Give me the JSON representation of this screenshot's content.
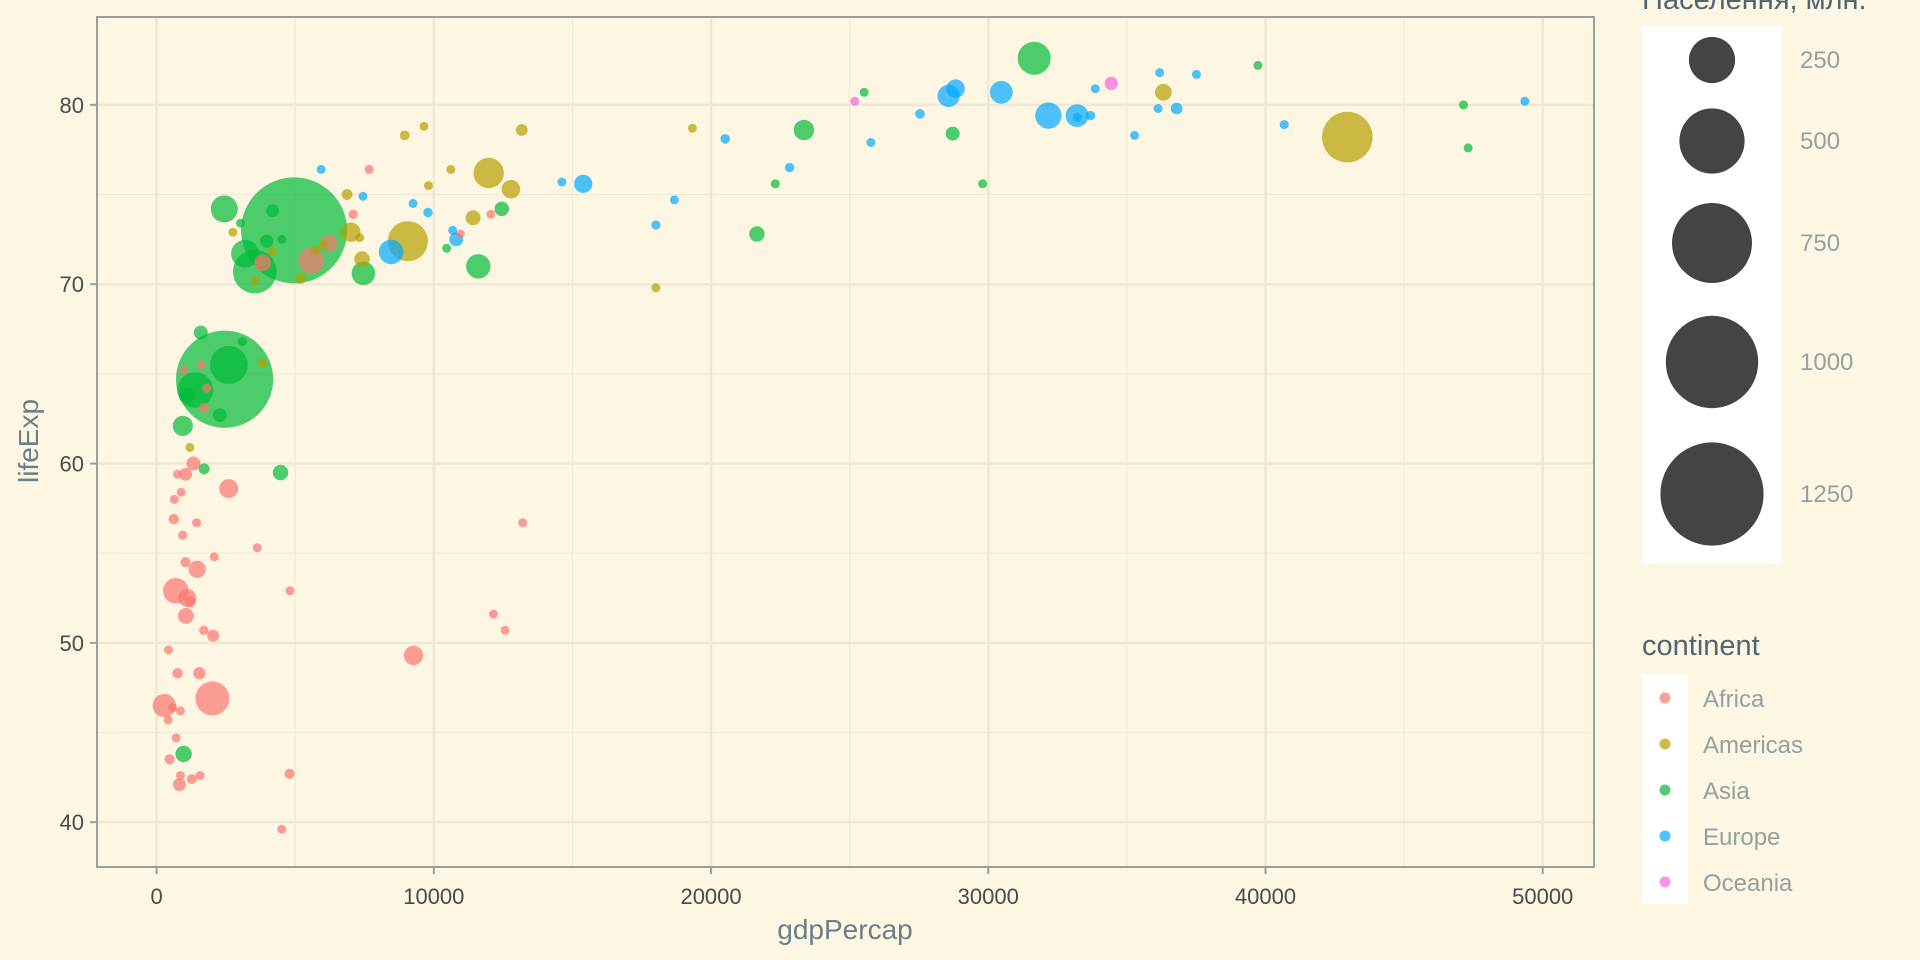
{
  "chart_data": {
    "type": "scatter",
    "xlabel": "gdpPercap",
    "ylabel": "lifeExp",
    "xlim": [
      -2150,
      51850
    ],
    "ylim": [
      37.5,
      84.9
    ],
    "x_ticks": [
      0,
      10000,
      20000,
      30000,
      40000,
      50000
    ],
    "y_ticks": [
      40,
      50,
      60,
      70,
      80
    ],
    "grid": true,
    "colors": {
      "background": "#FDF6E3",
      "panel_border": "#93A1A1",
      "grid_major": "#EEE8D5",
      "size_legend_fill": "#444444"
    },
    "size_legend": {
      "title": "Населення, млн.",
      "placement": "right-top",
      "breaks": [
        {
          "value": 250,
          "label": "250"
        },
        {
          "value": 500,
          "label": "500"
        },
        {
          "value": 750,
          "label": "750"
        },
        {
          "value": 1000,
          "label": "1000"
        },
        {
          "value": 1250,
          "label": "1250"
        }
      ]
    },
    "color_legend": {
      "title": "continent",
      "placement": "right-bottom"
    },
    "series": [
      {
        "name": "Africa",
        "color": "#F8766D",
        "points": [
          [
            6223,
            72.3,
            33.3
          ],
          [
            4797,
            42.7,
            12.4
          ],
          [
            1441,
            56.7,
            8.1
          ],
          [
            12570,
            50.7,
            1.6
          ],
          [
            1217,
            52.3,
            14.3
          ],
          [
            430,
            49.6,
            8.4
          ],
          [
            2042,
            50.4,
            17.7
          ],
          [
            706,
            44.7,
            4.4
          ],
          [
            1704,
            50.7,
            10.2
          ],
          [
            986,
            65.2,
            0.7
          ],
          [
            278,
            46.5,
            64.6
          ],
          [
            3633,
            55.3,
            3.8
          ],
          [
            1545,
            48.3,
            18.0
          ],
          [
            2082,
            54.8,
            0.5
          ],
          [
            5581,
            71.3,
            80.3
          ],
          [
            12154,
            51.6,
            0.6
          ],
          [
            641,
            58.0,
            4.9
          ],
          [
            691,
            52.9,
            76.5
          ],
          [
            13206,
            56.7,
            1.5
          ],
          [
            753,
            59.4,
            1.7
          ],
          [
            1328,
            60.0,
            22.9
          ],
          [
            943,
            56.0,
            9.9
          ],
          [
            580,
            46.4,
            1.5
          ],
          [
            1464,
            54.1,
            35.6
          ],
          [
            1569,
            42.6,
            2.0
          ],
          [
            415,
            45.7,
            3.2
          ],
          [
            12057,
            73.9,
            6.0
          ],
          [
            1045,
            59.4,
            19.2
          ],
          [
            759,
            48.3,
            13.3
          ],
          [
            1042,
            54.5,
            12.0
          ],
          [
            1803,
            64.2,
            3.3
          ],
          [
            10957,
            72.8,
            1.3
          ],
          [
            3820,
            71.2,
            33.8
          ],
          [
            824,
            42.1,
            19.9
          ],
          [
            4811,
            52.9,
            2.1
          ],
          [
            620,
            56.9,
            12.9
          ],
          [
            2014,
            46.9,
            135.0
          ],
          [
            7670,
            76.4,
            0.8
          ],
          [
            863,
            46.2,
            9.0
          ],
          [
            1598,
            65.5,
            0.2
          ],
          [
            1712,
            63.1,
            12.3
          ],
          [
            862,
            42.6,
            6.1
          ],
          [
            9269,
            49.3,
            43.9
          ],
          [
            2602,
            58.6,
            42.3
          ],
          [
            4513,
            39.6,
            1.1
          ],
          [
            1107,
            52.5,
            38.1
          ],
          [
            883,
            58.4,
            5.7
          ],
          [
            7093,
            73.9,
            10.3
          ],
          [
            1056,
            51.5,
            29.2
          ],
          [
            1271,
            42.4,
            11.7
          ],
          [
            470,
            43.5,
            12.3
          ]
        ]
      },
      {
        "name": "Americas",
        "color": "#B79F00",
        "points": [
          [
            12779,
            75.3,
            40.3
          ],
          [
            3822,
            65.6,
            9.1
          ],
          [
            9066,
            72.4,
            190.0
          ],
          [
            36319,
            80.7,
            33.4
          ],
          [
            13172,
            78.6,
            16.3
          ],
          [
            7007,
            72.9,
            44.2
          ],
          [
            9645,
            78.8,
            4.1
          ],
          [
            8948,
            78.3,
            11.4
          ],
          [
            6025,
            72.2,
            9.3
          ],
          [
            6873,
            75.0,
            13.8
          ],
          [
            5728,
            71.9,
            6.9
          ],
          [
            5186,
            70.3,
            12.6
          ],
          [
            1202,
            60.9,
            8.5
          ],
          [
            3548,
            70.2,
            7.5
          ],
          [
            7321,
            72.6,
            2.8
          ],
          [
            11978,
            76.2,
            108.7
          ],
          [
            2749,
            72.9,
            5.7
          ],
          [
            9809,
            75.5,
            3.2
          ],
          [
            4173,
            71.8,
            6.7
          ],
          [
            7409,
            71.4,
            28.7
          ],
          [
            19329,
            78.7,
            3.9
          ],
          [
            18009,
            69.8,
            1.1
          ],
          [
            42952,
            78.2,
            301.1
          ],
          [
            10611,
            76.4,
            3.4
          ],
          [
            11416,
            73.7,
            26.1
          ]
        ]
      },
      {
        "name": "Asia",
        "color": "#00BA38",
        "points": [
          [
            975,
            43.8,
            31.9
          ],
          [
            29796,
            75.6,
            0.7
          ],
          [
            1391,
            64.1,
            150.4
          ],
          [
            1714,
            59.7,
            14.1
          ],
          [
            4959,
            73.0,
            1318.7
          ],
          [
            39725,
            82.2,
            6.9
          ],
          [
            2452,
            64.7,
            1110.4
          ],
          [
            3541,
            70.7,
            223.5
          ],
          [
            11606,
            71.0,
            69.5
          ],
          [
            4471,
            59.5,
            27.5
          ],
          [
            25523,
            80.7,
            6.4
          ],
          [
            31656,
            82.6,
            127.5
          ],
          [
            4519,
            72.5,
            6.1
          ],
          [
            1593,
            67.3,
            23.3
          ],
          [
            23348,
            78.6,
            49.0
          ],
          [
            47307,
            77.6,
            2.5
          ],
          [
            10461,
            72.0,
            3.9
          ],
          [
            12452,
            74.2,
            24.8
          ],
          [
            3096,
            66.8,
            2.9
          ],
          [
            944,
            62.1,
            47.8
          ],
          [
            1091,
            63.8,
            28.9
          ],
          [
            22316,
            75.6,
            3.2
          ],
          [
            2606,
            65.5,
            169.3
          ],
          [
            3190,
            71.7,
            91.1
          ],
          [
            21655,
            72.8,
            27.6
          ],
          [
            47143,
            80.0,
            4.6
          ],
          [
            3970,
            72.4,
            20.4
          ],
          [
            4185,
            74.1,
            19.3
          ],
          [
            28718,
            78.4,
            23.2
          ],
          [
            7458,
            70.6,
            65.1
          ],
          [
            2442,
            74.2,
            85.3
          ],
          [
            3025,
            73.4,
            4.0
          ],
          [
            2281,
            62.7,
            22.2
          ]
        ]
      },
      {
        "name": "Europe",
        "color": "#00A9FF",
        "points": [
          [
            5937,
            76.4,
            3.6
          ],
          [
            36126,
            79.8,
            8.2
          ],
          [
            33693,
            79.4,
            10.4
          ],
          [
            7446,
            74.9,
            4.6
          ],
          [
            10681,
            73.0,
            7.3
          ],
          [
            14619,
            75.7,
            4.5
          ],
          [
            22833,
            76.5,
            10.2
          ],
          [
            35278,
            78.3,
            5.5
          ],
          [
            33207,
            79.3,
            5.2
          ],
          [
            30470,
            80.7,
            61.1
          ],
          [
            32170,
            79.4,
            82.4
          ],
          [
            27538,
            79.5,
            10.7
          ],
          [
            18009,
            73.3,
            10.0
          ],
          [
            36181,
            81.8,
            0.3
          ],
          [
            40676,
            78.9,
            4.1
          ],
          [
            28570,
            80.5,
            58.1
          ],
          [
            9254,
            74.5,
            0.7
          ],
          [
            36798,
            79.8,
            16.6
          ],
          [
            49357,
            80.2,
            4.6
          ],
          [
            15390,
            75.6,
            38.5
          ],
          [
            20510,
            78.1,
            10.6
          ],
          [
            10808,
            72.5,
            22.3
          ],
          [
            9787,
            74.0,
            10.2
          ],
          [
            18678,
            74.7,
            5.4
          ],
          [
            25768,
            77.9,
            2.0
          ],
          [
            28821,
            80.9,
            40.4
          ],
          [
            33860,
            80.9,
            9.0
          ],
          [
            37506,
            81.7,
            7.6
          ],
          [
            8458,
            71.8,
            71.2
          ],
          [
            33203,
            79.4,
            60.8
          ]
        ]
      },
      {
        "name": "Oceania",
        "color": "#F564E3",
        "points": [
          [
            34435,
            81.2,
            20.4
          ],
          [
            25185,
            80.2,
            4.1
          ]
        ]
      }
    ]
  }
}
